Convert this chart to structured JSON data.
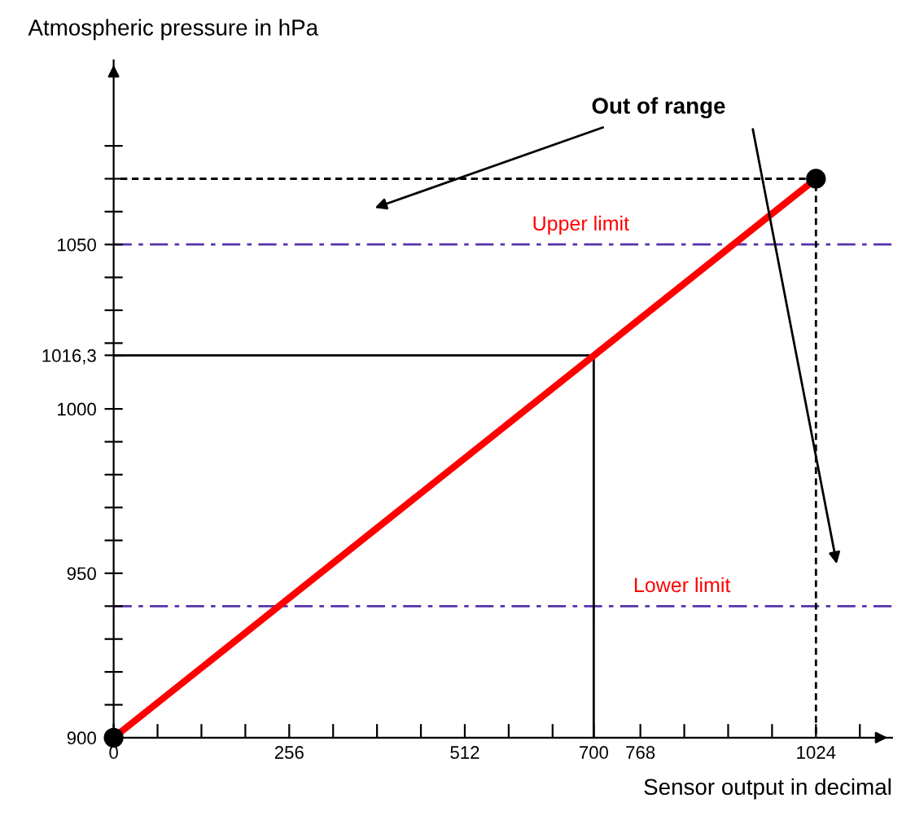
{
  "chart_data": {
    "type": "line",
    "xlabel": "Sensor output in decimal",
    "ylabel": "Atmospheric pressure in hPa",
    "series": [
      {
        "color": "#ff0000",
        "x": [
          0,
          1024
        ],
        "values": [
          900,
          1070
        ]
      },
      {
        "type": "scatter",
        "color": "#000000",
        "x": [
          0,
          1024
        ],
        "values": [
          900,
          1070
        ],
        "marker": "circle"
      },
      {
        "type": "line",
        "color": "#000000",
        "x": [
          0,
          700,
          700
        ],
        "values": [
          1016.3,
          1016.3,
          900
        ],
        "line_style": "solid"
      },
      {
        "type": "line",
        "color": "#000000",
        "x": [
          10,
          1024,
          1024
        ],
        "values": [
          1070,
          1070,
          900
        ],
        "line_style": "dotted"
      }
    ],
    "ref_lines": [
      {
        "axis": "y",
        "value": 1050,
        "label": "Upper limit",
        "color": "#5533aa",
        "line_style": "dashed"
      },
      {
        "axis": "y",
        "value": 940,
        "label": "Lower limit",
        "color": "#5533aa",
        "line_style": "dashed"
      }
    ],
    "annotations": [
      "Out of range"
    ],
    "xlim": [
      0,
      1135
    ],
    "ylim": [
      900,
      1106
    ],
    "xticks": [
      0,
      {
        "value": 64,
        "label": null
      },
      {
        "value": 128,
        "label": null
      },
      {
        "value": 192,
        "label": null
      },
      256,
      {
        "value": 320,
        "label": null
      },
      {
        "value": 384,
        "label": null
      },
      {
        "value": 448,
        "label": null
      },
      512,
      {
        "value": 576,
        "label": null
      },
      {
        "value": 640,
        "label": null
      },
      700,
      768,
      {
        "value": 832,
        "label": null
      },
      {
        "value": 896,
        "label": null
      },
      {
        "value": 960,
        "label": null
      },
      1024,
      {
        "value": 1088,
        "label": null
      }
    ],
    "yticks": [
      900,
      {
        "value": 910,
        "label": null
      },
      {
        "value": 920,
        "label": null
      },
      {
        "value": 930,
        "label": null
      },
      {
        "value": 940,
        "label": null
      },
      950,
      {
        "value": 960,
        "label": null
      },
      {
        "value": 970,
        "label": null
      },
      {
        "value": 980,
        "label": null
      },
      {
        "value": 990,
        "label": null
      },
      1000,
      {
        "value": 1016.3,
        "label": "1016,3"
      },
      {
        "value": 1020,
        "label": null
      },
      {
        "value": 1030,
        "label": null
      },
      {
        "value": 1040,
        "label": null
      },
      1050,
      {
        "value": 1060,
        "label": null
      },
      {
        "value": 1070,
        "label": null
      },
      {
        "value": 1080,
        "label": null
      }
    ],
    "grid": false,
    "legend": false
  }
}
